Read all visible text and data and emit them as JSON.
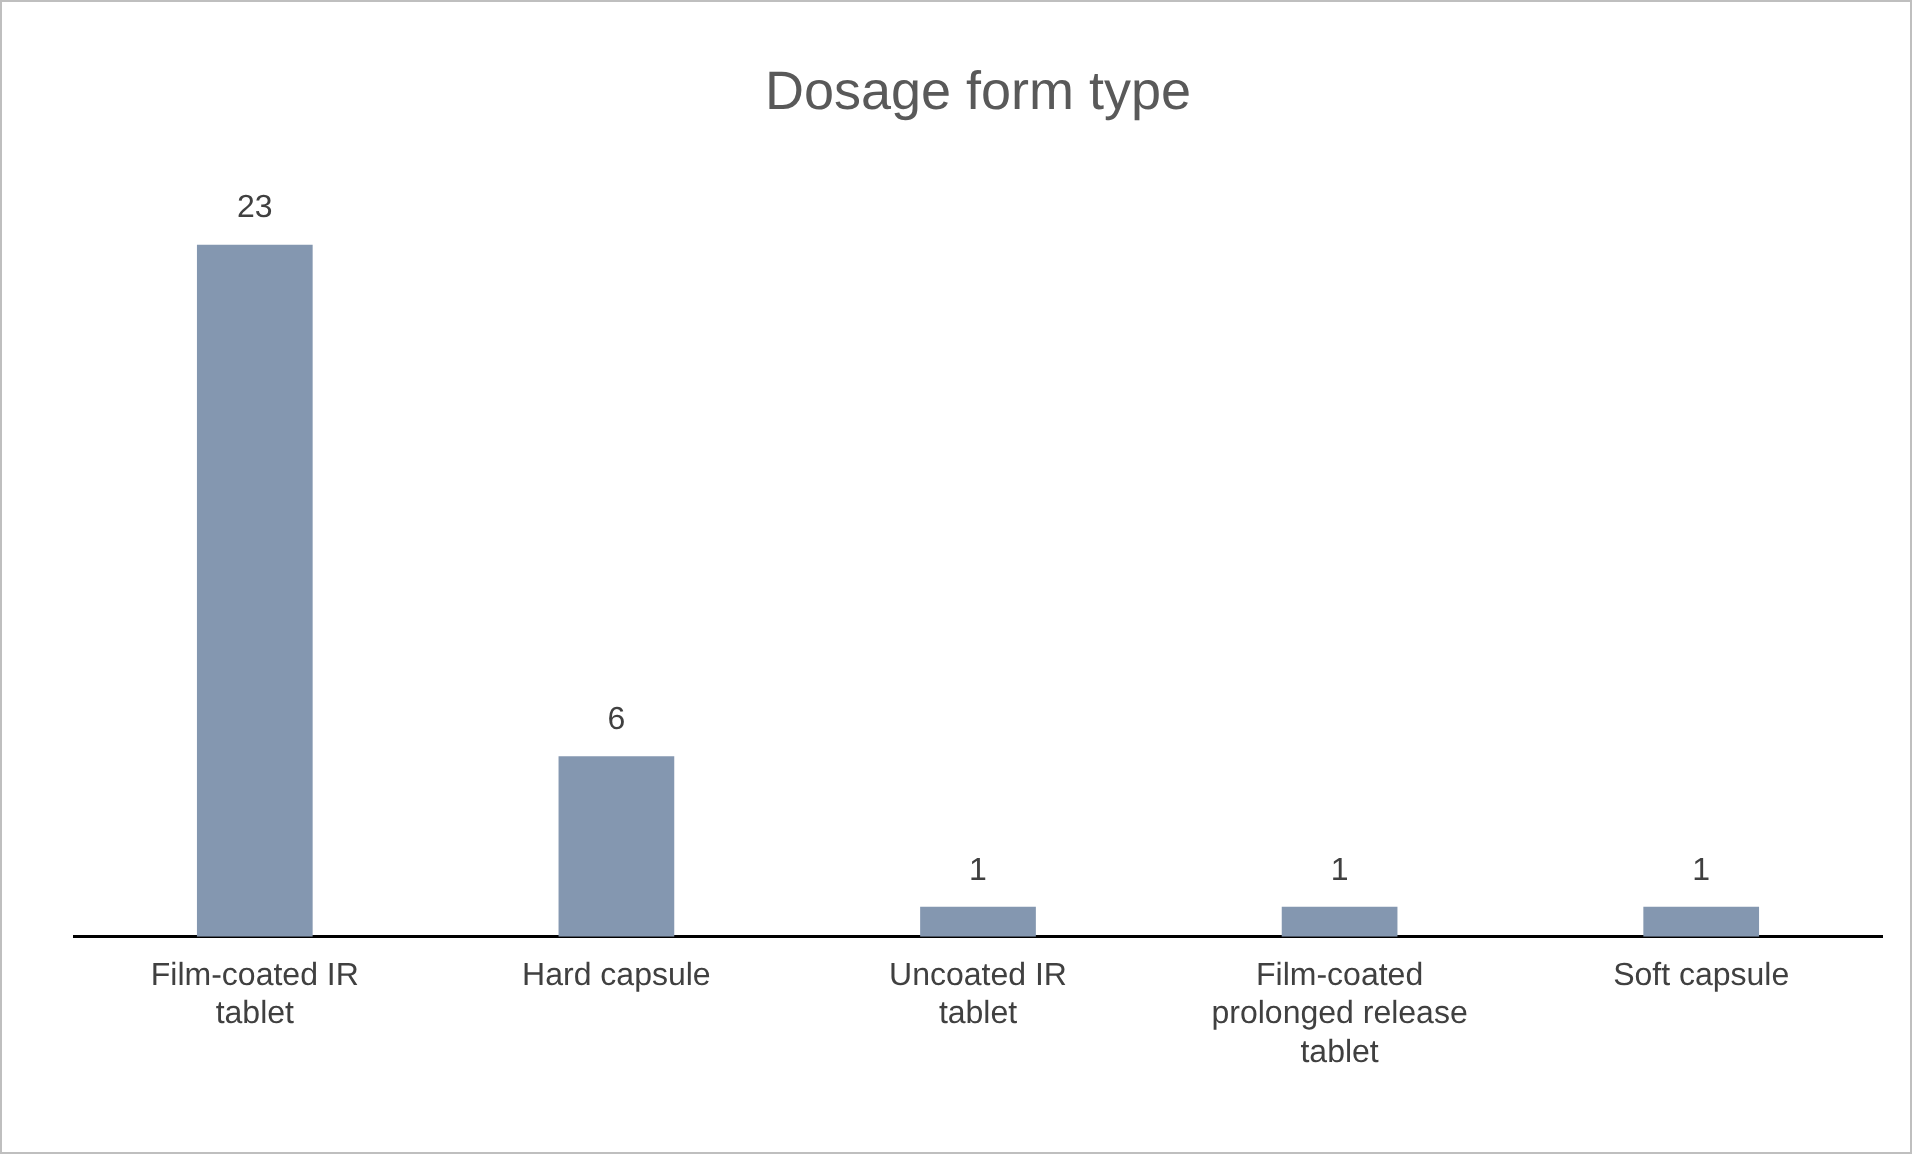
{
  "chart_data": {
    "type": "bar",
    "title": "Dosage form type",
    "categories": [
      "Film-coated IR tablet",
      "Hard capsule",
      "Uncoated IR tablet",
      "Film-coated prolonged release tablet",
      "Soft capsule"
    ],
    "values": [
      23,
      6,
      1,
      1,
      1
    ],
    "color": "#8497b0",
    "data_labels": true,
    "grid": false,
    "legend": false
  }
}
